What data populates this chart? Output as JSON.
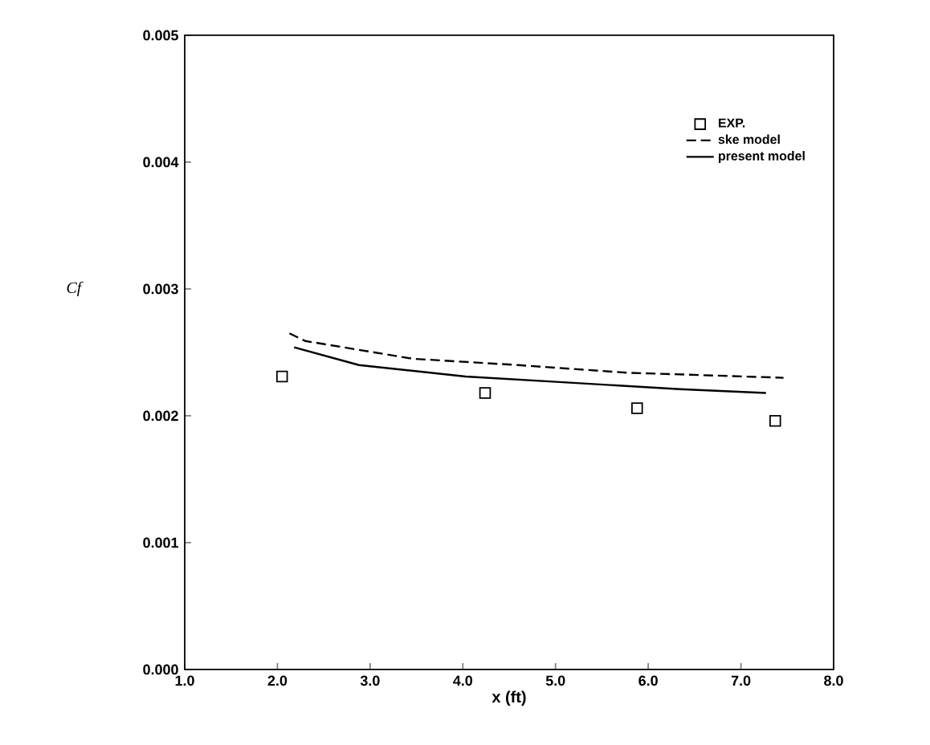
{
  "chart_data": {
    "type": "line",
    "xlabel": "x (ft)",
    "ylabel": "Cf",
    "xlim": [
      1.0,
      8.0
    ],
    "ylim": [
      0.0,
      0.005
    ],
    "xticks": [
      {
        "value": 1.0,
        "label": "1.0"
      },
      {
        "value": 2.0,
        "label": "2.0"
      },
      {
        "value": 3.0,
        "label": "3.0"
      },
      {
        "value": 4.0,
        "label": "4.0"
      },
      {
        "value": 5.0,
        "label": "5.0"
      },
      {
        "value": 6.0,
        "label": "6.0"
      },
      {
        "value": 7.0,
        "label": "7.0"
      },
      {
        "value": 8.0,
        "label": "8.0"
      }
    ],
    "yticks": [
      {
        "value": 0.0,
        "label": "0.000"
      },
      {
        "value": 0.001,
        "label": "0.001"
      },
      {
        "value": 0.002,
        "label": "0.002"
      },
      {
        "value": 0.003,
        "label": "0.003"
      },
      {
        "value": 0.004,
        "label": "0.004"
      },
      {
        "value": 0.005,
        "label": "0.005"
      }
    ],
    "legend": "top right",
    "grid": false,
    "series": [
      {
        "name": "EXP.",
        "type": "scatter",
        "marker": "square",
        "color": "#000000",
        "x": [
          2.05,
          4.24,
          5.88,
          7.37
        ],
        "values": [
          0.00231,
          0.00218,
          0.00206,
          0.00196
        ]
      },
      {
        "name": "ske model",
        "line_style": "dashed",
        "color": "#000000",
        "x": [
          2.13,
          2.3,
          3.46,
          4.6,
          5.77,
          7.46
        ],
        "values": [
          0.00265,
          0.00259,
          0.00245,
          0.0024,
          0.00234,
          0.0023
        ]
      },
      {
        "name": "present model",
        "line_style": "solid",
        "color": "#000000",
        "x": [
          2.18,
          2.88,
          4.03,
          5.19,
          6.34,
          7.27
        ],
        "values": [
          0.00254,
          0.0024,
          0.00231,
          0.00226,
          0.00221,
          0.00218
        ]
      }
    ]
  }
}
